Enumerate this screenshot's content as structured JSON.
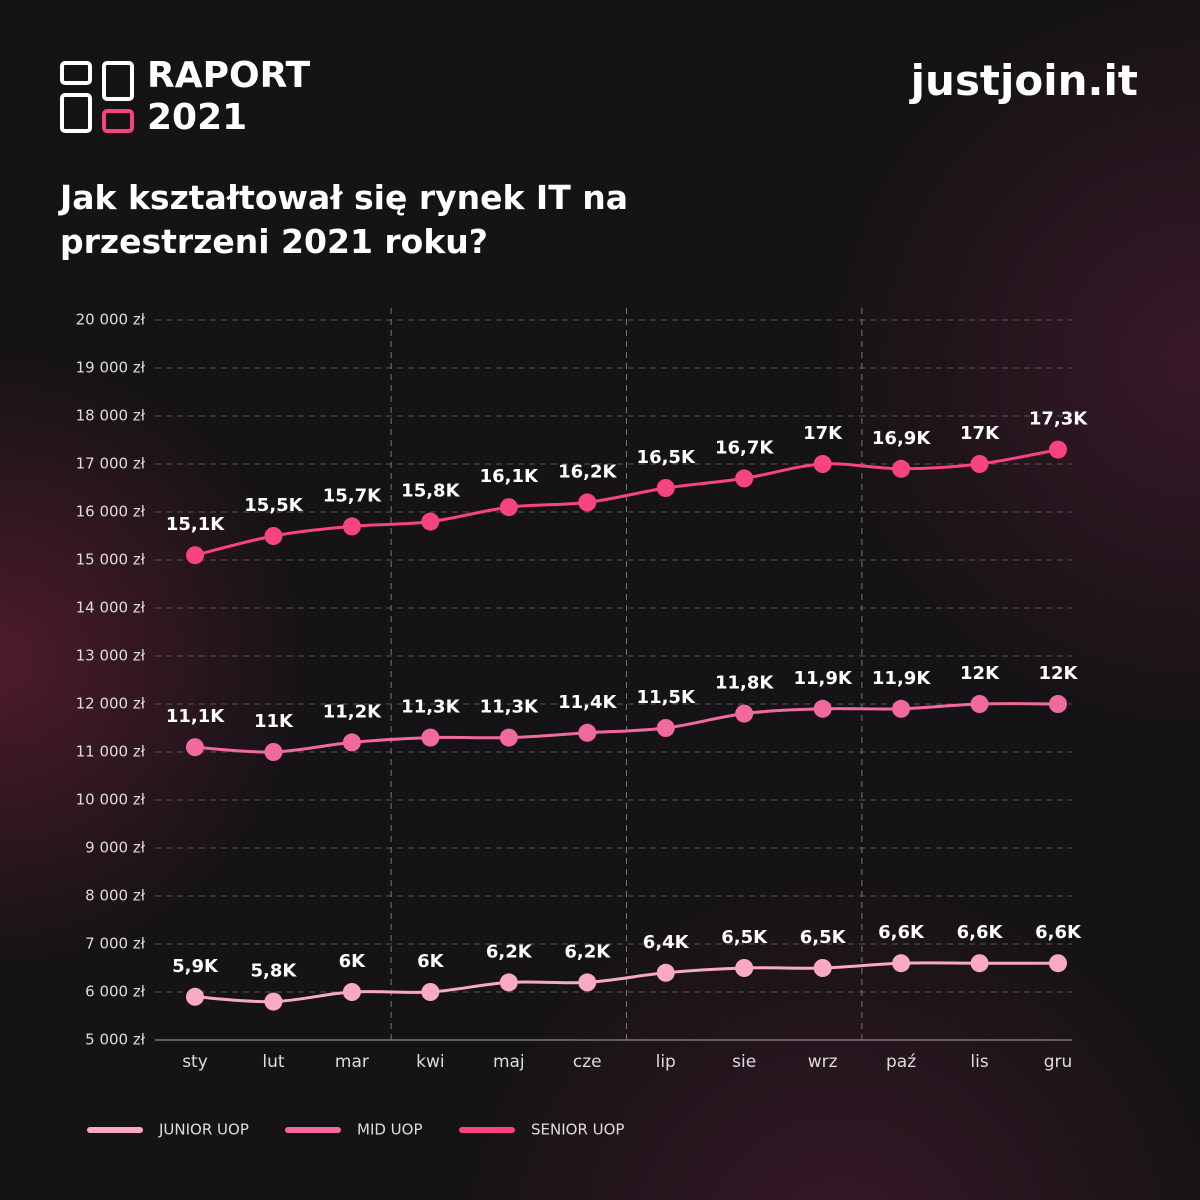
{
  "header": {
    "logo_line1": "RAPORT",
    "logo_line2": "2021",
    "brand": "justjoin.it"
  },
  "chart_data": {
    "type": "line",
    "title": "Jak kształtował się rynek IT na przestrzeni 2021 roku?",
    "categories": [
      "sty",
      "lut",
      "mar",
      "kwi",
      "maj",
      "cze",
      "lip",
      "sie",
      "wrz",
      "paź",
      "lis",
      "gru"
    ],
    "ylim": [
      5000,
      20000
    ],
    "yticks": [
      {
        "value": 5000,
        "label": "5 000 zł"
      },
      {
        "value": 6000,
        "label": "6 000 zł"
      },
      {
        "value": 7000,
        "label": "7 000 zł"
      },
      {
        "value": 8000,
        "label": "8 000 zł"
      },
      {
        "value": 9000,
        "label": "9 000 zł"
      },
      {
        "value": 10000,
        "label": "10 000 zł"
      },
      {
        "value": 11000,
        "label": "11 000 zł"
      },
      {
        "value": 12000,
        "label": "12 000 zł"
      },
      {
        "value": 13000,
        "label": "13 000 zł"
      },
      {
        "value": 14000,
        "label": "14 000 zł"
      },
      {
        "value": 15000,
        "label": "15 000 zł"
      },
      {
        "value": 16000,
        "label": "16 000 zł"
      },
      {
        "value": 17000,
        "label": "17 000 zł"
      },
      {
        "value": 18000,
        "label": "18 000 zł"
      },
      {
        "value": 19000,
        "label": "19 000 zł"
      },
      {
        "value": 20000,
        "label": "20 000 zł"
      }
    ],
    "grid": true,
    "legend": "bottom-left",
    "series": [
      {
        "name": "JUNIOR UOP",
        "color": "#f9a8c6",
        "values": [
          5900,
          5800,
          6000,
          6000,
          6200,
          6200,
          6400,
          6500,
          6500,
          6600,
          6600,
          6600
        ],
        "value_labels": [
          "5,9K",
          "5,8K",
          "6K",
          "6K",
          "6,2K",
          "6,2K",
          "6,4K",
          "6,5K",
          "6,5K",
          "6,6K",
          "6,6K",
          "6,6K"
        ]
      },
      {
        "name": "MID UOP",
        "color": "#f06a9b",
        "values": [
          11100,
          11000,
          11200,
          11300,
          11300,
          11400,
          11500,
          11800,
          11900,
          11900,
          12000,
          12000
        ],
        "value_labels": [
          "11,1K",
          "11K",
          "11,2K",
          "11,3K",
          "11,3K",
          "11,4K",
          "11,5K",
          "11,8K",
          "11,9K",
          "11,9K",
          "12K",
          "12K"
        ]
      },
      {
        "name": "SENIOR UOP",
        "color": "#f7447f",
        "values": [
          15100,
          15500,
          15700,
          15800,
          16100,
          16200,
          16500,
          16700,
          17000,
          16900,
          17000,
          17300
        ],
        "value_labels": [
          "15,1K",
          "15,5K",
          "15,7K",
          "15,8K",
          "16,1K",
          "16,2K",
          "16,5K",
          "16,7K",
          "17K",
          "16,9K",
          "17K",
          "17,3K"
        ]
      }
    ]
  }
}
